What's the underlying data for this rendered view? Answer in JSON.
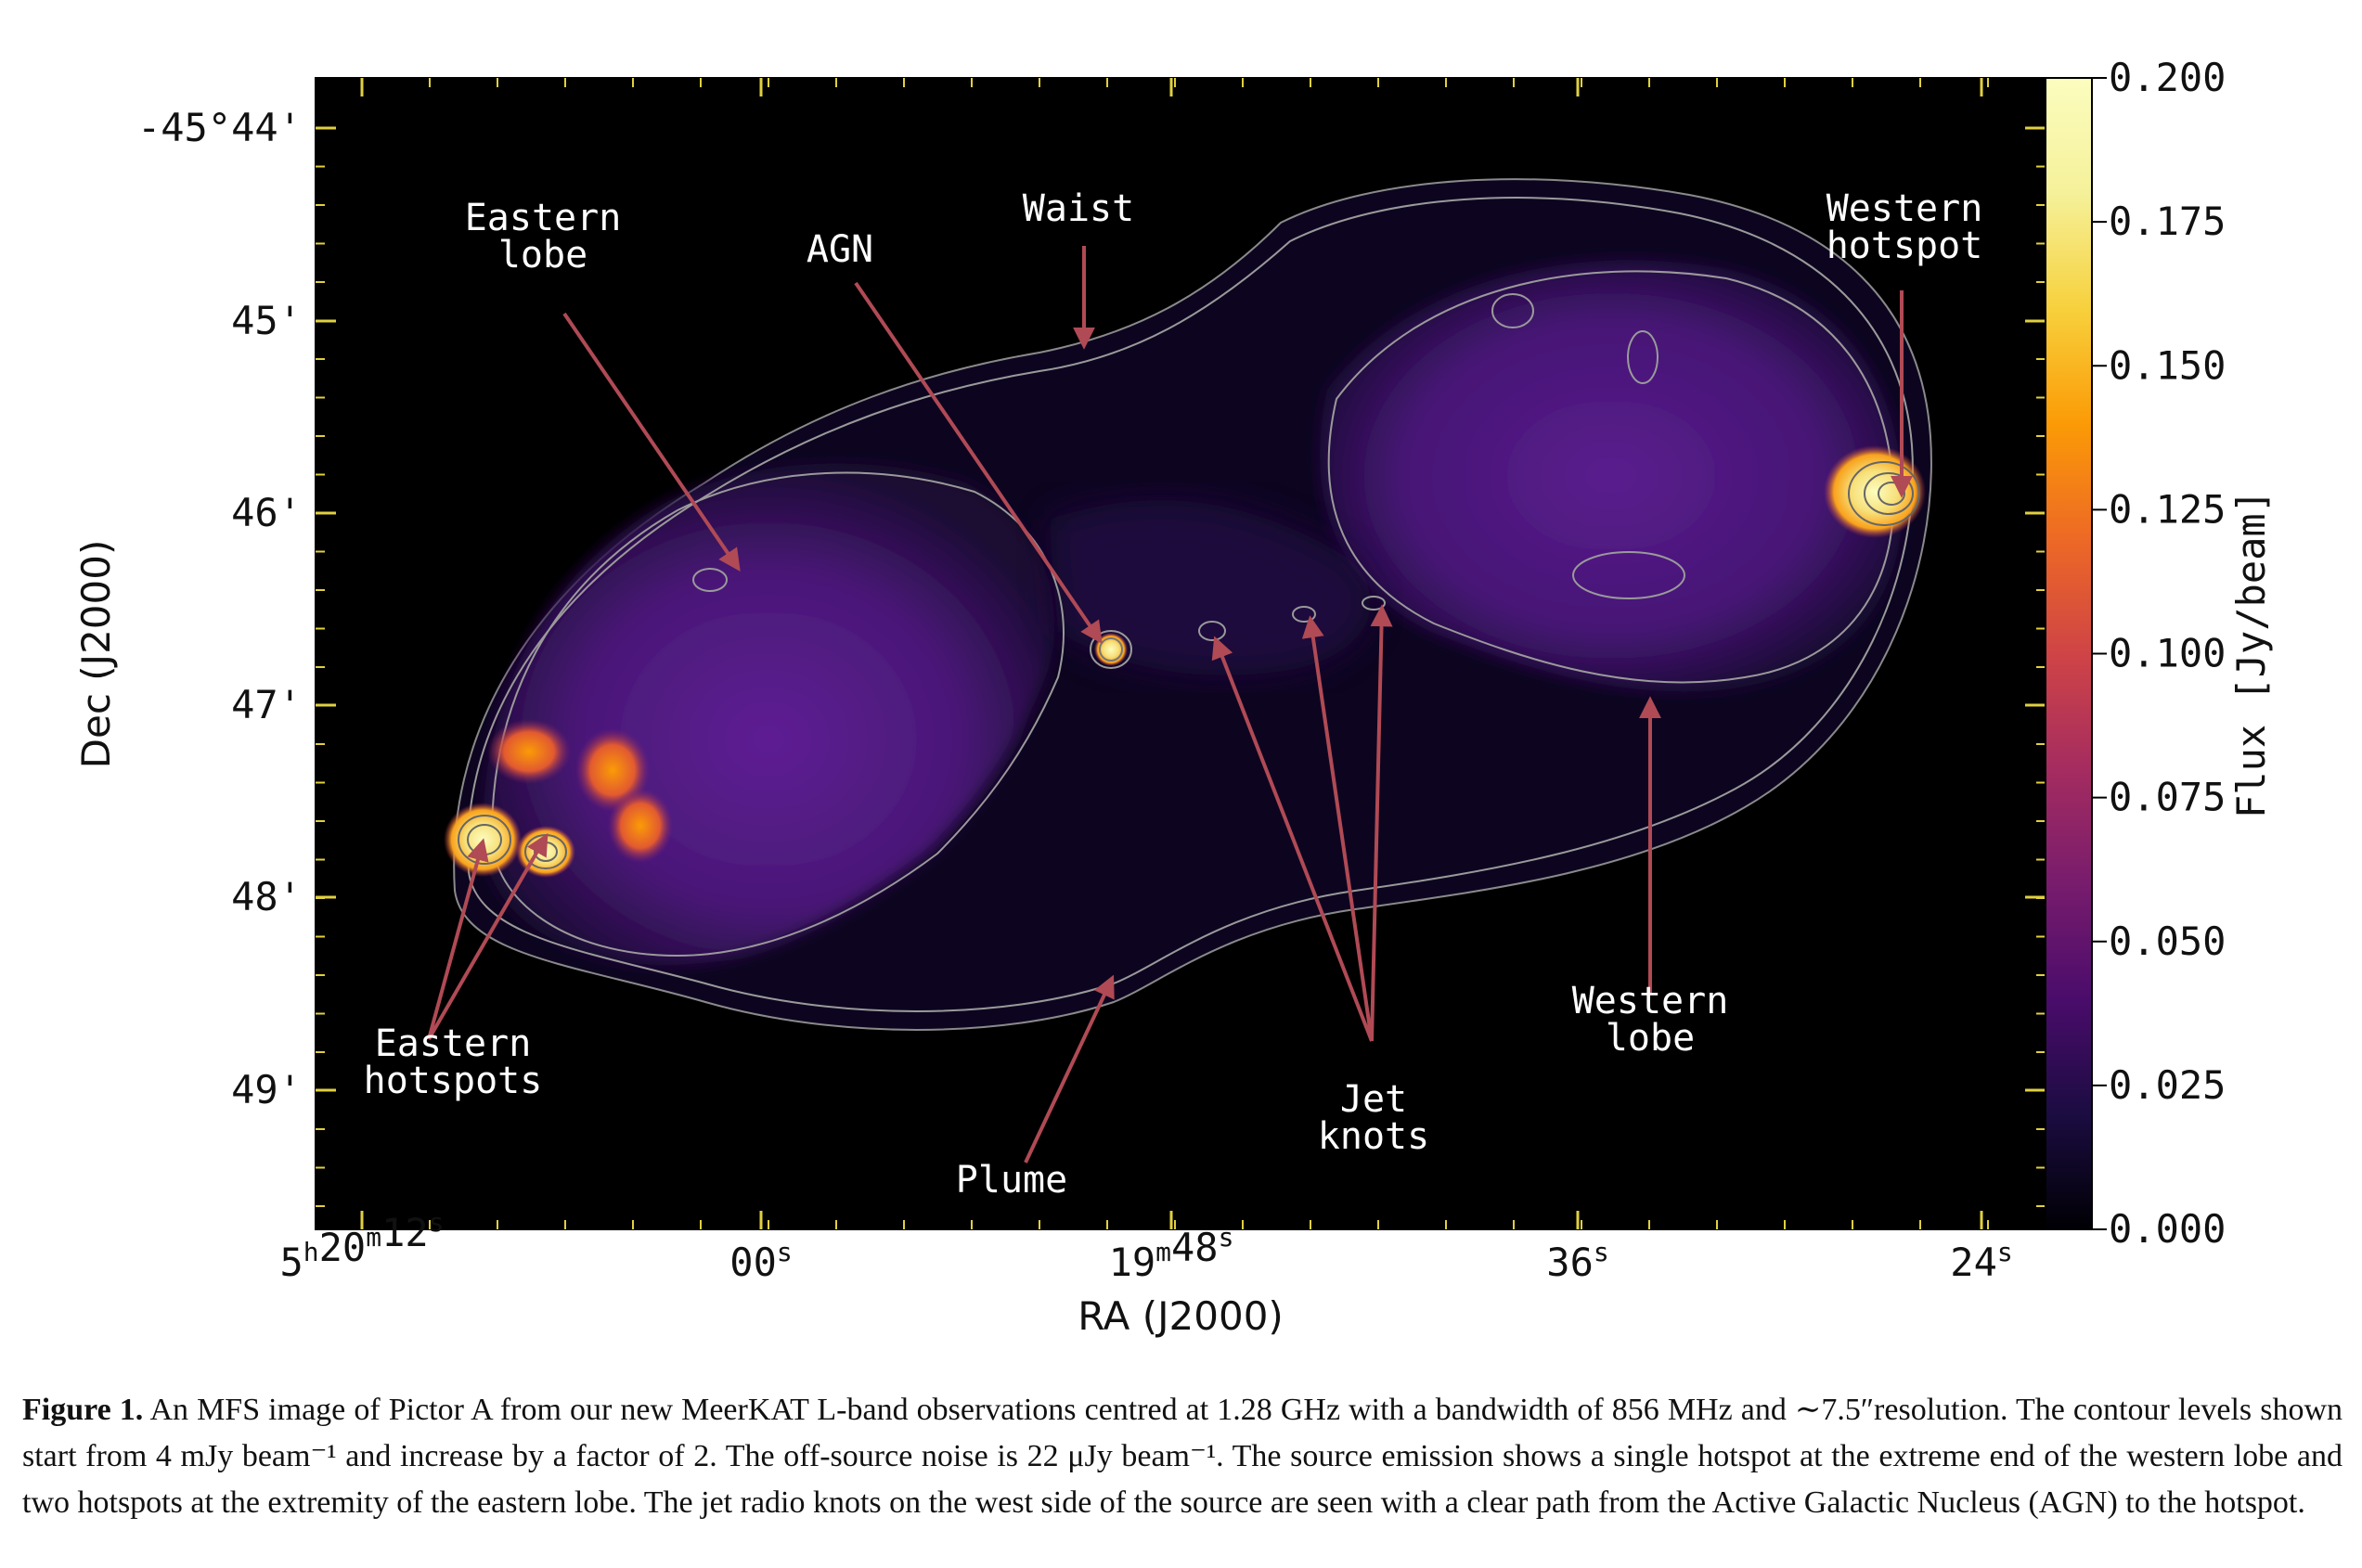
{
  "figure": {
    "annotations": [
      {
        "key": "waist",
        "lines": [
          "Waist"
        ]
      },
      {
        "key": "eastern_lobe",
        "lines": [
          "Eastern",
          "lobe"
        ]
      },
      {
        "key": "agn",
        "lines": [
          "AGN"
        ]
      },
      {
        "key": "western_hotspot",
        "lines": [
          "Western",
          "hotspot"
        ]
      },
      {
        "key": "eastern_hotspots",
        "lines": [
          "Eastern",
          "hotspots"
        ]
      },
      {
        "key": "plume",
        "lines": [
          "Plume"
        ]
      },
      {
        "key": "jet_knots",
        "lines": [
          "Jet",
          "knots"
        ]
      },
      {
        "key": "western_lobe",
        "lines": [
          "Western",
          "lobe"
        ]
      }
    ],
    "colors": {
      "background": "#000000",
      "lobe": "#5a1e8c",
      "hotspot": "#fcfdbf",
      "contour": "#aaaaaa",
      "arrow": "#b04a55"
    }
  },
  "chart_data": {
    "type": "heatmap",
    "title": "",
    "xlabel": "RA (J2000)",
    "ylabel": "Dec (J2000)",
    "x_ticks": [
      {
        "h": "5",
        "hs": "h",
        "m": "20",
        "ms": "m",
        "s": "12",
        "ss": "s"
      },
      {
        "h": "",
        "hs": "",
        "m": "",
        "ms": "",
        "s": "00",
        "ss": "s"
      },
      {
        "h": "",
        "hs": "",
        "m": "19",
        "ms": "m",
        "s": "48",
        "ss": "s"
      },
      {
        "h": "",
        "hs": "",
        "m": "",
        "ms": "",
        "s": "36",
        "ss": "s"
      },
      {
        "h": "",
        "hs": "",
        "m": "",
        "ms": "",
        "s": "24",
        "ss": "s"
      }
    ],
    "y_ticks": [
      "-45°44'",
      "45'",
      "46'",
      "47'",
      "48'",
      "49'"
    ],
    "colorbar": {
      "label": "Flux [Jy/beam]",
      "range": [
        0.0,
        0.2
      ],
      "ticks": [
        "0.000",
        "0.025",
        "0.050",
        "0.075",
        "0.100",
        "0.125",
        "0.150",
        "0.175",
        "0.200"
      ],
      "colormap": "inferno"
    },
    "contours": "start at 4 mJy beam^-1, increase by factor of 2"
  },
  "caption": {
    "label": "Figure 1.",
    "text": " An MFS image of Pictor A from our new MeerKAT L-band observations centred at 1.28 GHz with a bandwidth of 856 MHz and ∼7.5″resolution. The contour levels shown start from 4 mJy beam⁻¹ and increase by a factor of 2. The off-source noise is 22 μJy beam⁻¹. The source emission shows a single hotspot at the extreme end of the western lobe and two hotspots at the extremity of the eastern lobe. The jet radio knots on the west side of the source are seen with a clear path from the Active Galactic Nucleus (AGN) to the hotspot."
  }
}
